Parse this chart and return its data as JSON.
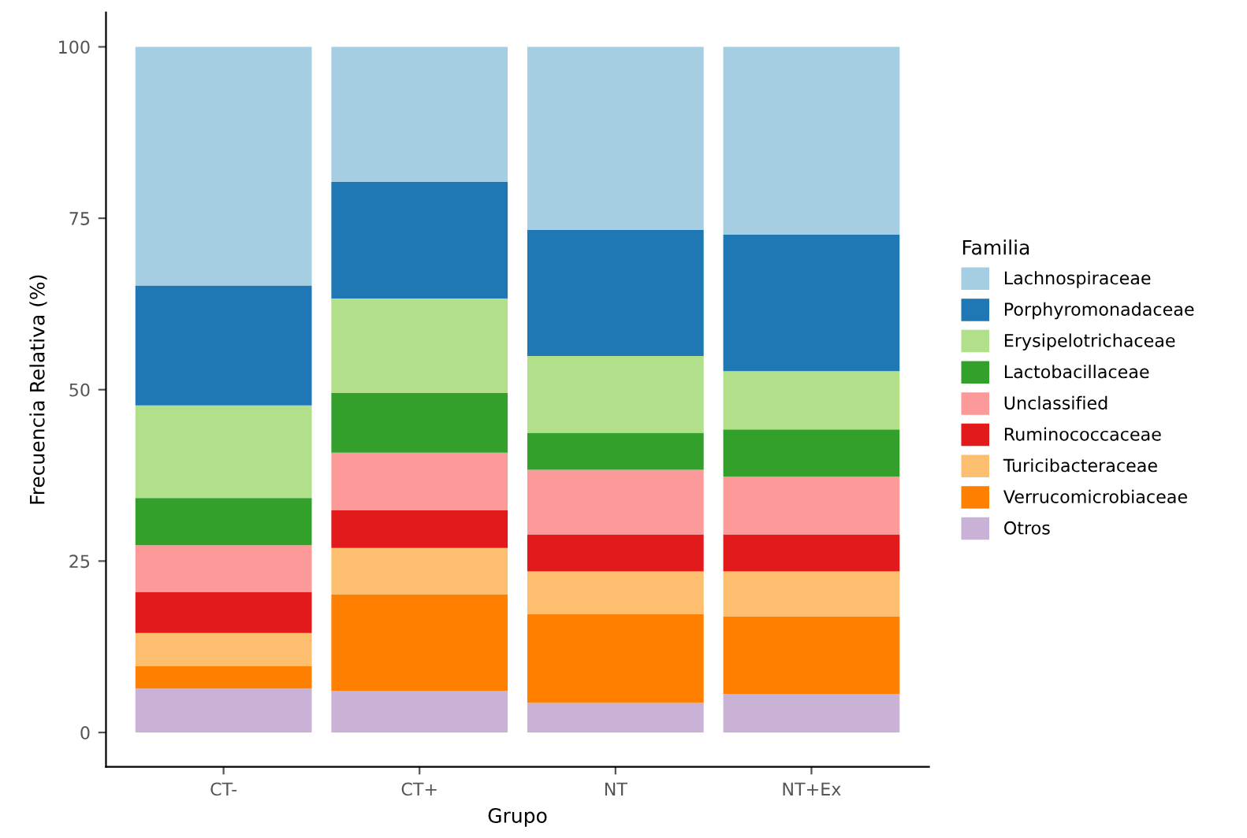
{
  "chart_data": {
    "type": "bar",
    "stacked": true,
    "xlabel": "Grupo",
    "ylabel": "Frecuencia Relativa (%)",
    "legend_title": "Familia",
    "legend": "right",
    "grid": false,
    "categories": [
      "CT-",
      "CT+",
      "NT",
      "NT+Ex"
    ],
    "ylim": [
      -5,
      105
    ],
    "yticks": [
      0,
      25,
      50,
      75,
      100
    ],
    "series": [
      {
        "name": "Otros",
        "color": "#cab2d6",
        "values": [
          6.4,
          6.1,
          4.3,
          5.6
        ]
      },
      {
        "name": "Verrucomicrobiaceae",
        "color": "#ff7f00",
        "values": [
          3.3,
          14.0,
          13.0,
          11.3
        ]
      },
      {
        "name": "Turicibacteraceae",
        "color": "#fdbf6f",
        "values": [
          4.8,
          6.8,
          6.2,
          6.6
        ]
      },
      {
        "name": "Ruminococcaceae",
        "color": "#e31a1c",
        "values": [
          6.0,
          5.5,
          5.4,
          5.4
        ]
      },
      {
        "name": "Unclassified",
        "color": "#fb9a99",
        "values": [
          6.8,
          8.4,
          9.4,
          8.4
        ]
      },
      {
        "name": "Lactobacillaceae",
        "color": "#33a02c",
        "values": [
          6.9,
          8.7,
          5.4,
          6.9
        ]
      },
      {
        "name": "Erysipelotrichaceae",
        "color": "#b2df8a",
        "values": [
          13.5,
          13.8,
          11.2,
          8.5
        ]
      },
      {
        "name": "Porphyromonadaceae",
        "color": "#1f78b4",
        "values": [
          17.5,
          17.0,
          18.4,
          19.9
        ]
      },
      {
        "name": "Lachnospiraceae",
        "color": "#a6cee3",
        "values": [
          34.8,
          19.7,
          26.7,
          27.4
        ]
      }
    ]
  }
}
